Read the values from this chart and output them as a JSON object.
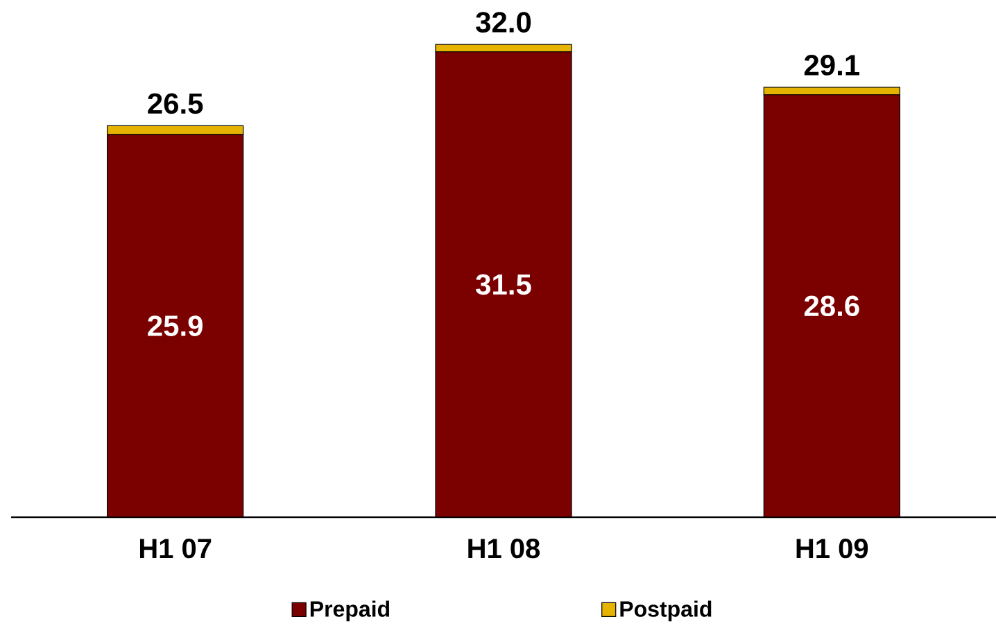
{
  "chart_data": {
    "type": "bar",
    "stacked": true,
    "categories": [
      "H1 07",
      "H1 08",
      "H1 09"
    ],
    "series": [
      {
        "name": "Prepaid",
        "color": "#7b0000",
        "values": [
          25.9,
          31.5,
          28.6
        ],
        "value_labels": [
          "25.9",
          "31.5",
          "28.6"
        ]
      },
      {
        "name": "Postpaid",
        "color": "#e6b400",
        "values": [
          0.6,
          0.5,
          0.5
        ]
      }
    ],
    "totals": [
      "26.5",
      "32.0",
      "29.1"
    ],
    "tick_labels": "x",
    "legend": "bottom"
  }
}
